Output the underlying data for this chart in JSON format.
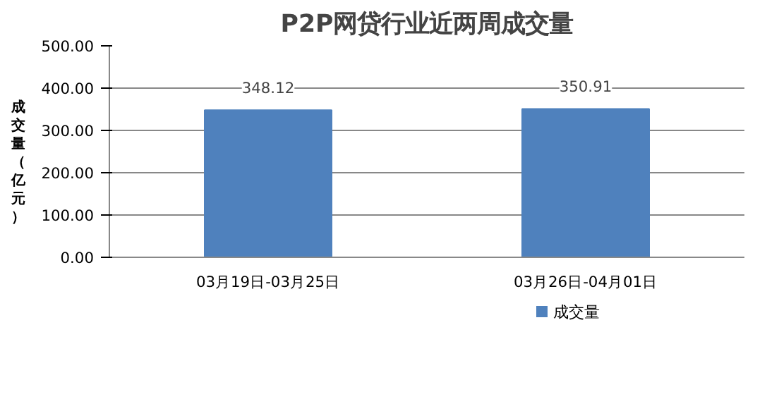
{
  "chart_data": {
    "type": "bar",
    "title": "P2P网贷行业近两周成交量",
    "ylabel": "成交量（亿元）",
    "categories": [
      "03月19日-03月25日",
      "03月26日-04月01日"
    ],
    "series": [
      {
        "name": "成交量",
        "color": "#4f81bd",
        "values": [
          348.12,
          350.91
        ]
      }
    ],
    "ylim": [
      0,
      500
    ],
    "yticks": [
      {
        "value": 0,
        "label": "0.00"
      },
      {
        "value": 100,
        "label": "100.00"
      },
      {
        "value": 200,
        "label": "200.00"
      },
      {
        "value": 300,
        "label": "300.00"
      },
      {
        "value": 400,
        "label": "400.00"
      },
      {
        "value": 500,
        "label": "500.00"
      }
    ],
    "grid": "y",
    "legend": "bottom",
    "data_labels": true
  }
}
